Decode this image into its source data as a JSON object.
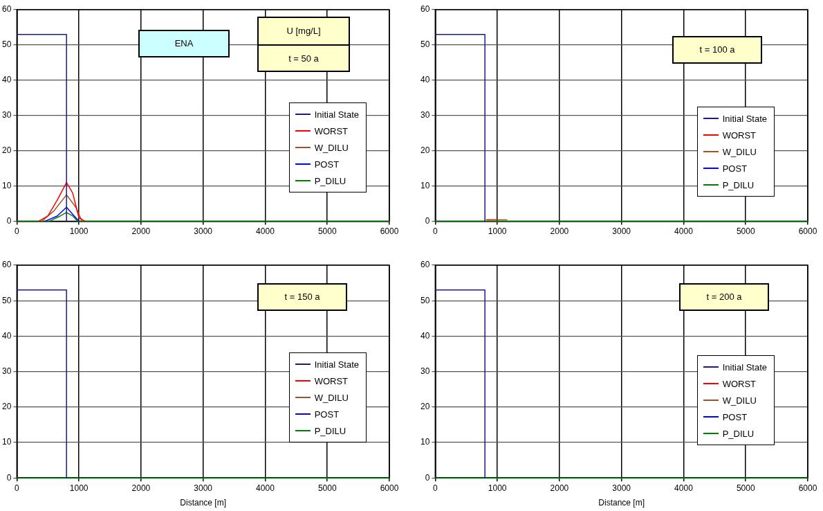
{
  "chart_data": [
    {
      "type": "line",
      "annotations": [
        "ENA",
        "U  [mg/L]",
        "t = 50 a"
      ],
      "xlim": [
        0,
        6000
      ],
      "xticks": [
        0,
        1000,
        2000,
        3000,
        4000,
        5000,
        6000
      ],
      "ylim": [
        0,
        60
      ],
      "yticks": [
        0,
        10,
        20,
        30,
        40,
        50,
        60
      ],
      "grid": true,
      "legend": "right",
      "marker": "none",
      "line_style": "solid",
      "series": [
        {
          "name": "Initial State",
          "color": "#1a1a8c",
          "x": [
            0,
            800,
            800
          ],
          "values": [
            53,
            53,
            0
          ]
        },
        {
          "name": "WORST",
          "color": "#ff0000",
          "x": [
            350,
            500,
            650,
            800,
            900,
            1000,
            1100
          ],
          "values": [
            0,
            1.5,
            6,
            11,
            8,
            1,
            0
          ]
        },
        {
          "name": "W_DILU",
          "color": "#a0522d",
          "x": [
            400,
            600,
            800,
            950,
            1050
          ],
          "values": [
            0,
            3,
            7.5,
            4,
            0
          ]
        },
        {
          "name": "POST",
          "color": "#0000ff",
          "x": [
            450,
            650,
            800,
            900,
            1000
          ],
          "values": [
            0,
            1.5,
            4,
            2,
            0
          ]
        },
        {
          "name": "P_DILU",
          "color": "#008000",
          "x": [
            0,
            520,
            700,
            800,
            900,
            980,
            6000
          ],
          "values": [
            0,
            0,
            1.5,
            2.5,
            1.5,
            0,
            0
          ]
        }
      ]
    },
    {
      "type": "line",
      "annotations": [
        "t = 100 a"
      ],
      "xlim": [
        0,
        6000
      ],
      "xticks": [
        0,
        1000,
        2000,
        3000,
        4000,
        5000,
        6000
      ],
      "ylim": [
        0,
        60
      ],
      "yticks": [
        0,
        10,
        20,
        30,
        40,
        50,
        60
      ],
      "grid": true,
      "legend": "right",
      "marker": "none",
      "line_style": "solid",
      "series": [
        {
          "name": "Initial State",
          "color": "#1a1a8c",
          "x": [
            0,
            800,
            800
          ],
          "values": [
            53,
            53,
            0
          ]
        },
        {
          "name": "WORST",
          "color": "#ff0000",
          "x": [
            820,
            1000
          ],
          "values": [
            0.4,
            0.4
          ]
        },
        {
          "name": "W_DILU",
          "color": "#a0522d",
          "x": [
            1000,
            1160
          ],
          "values": [
            0.4,
            0.4
          ]
        },
        {
          "name": "POST",
          "color": "#0000ff"
        },
        {
          "name": "P_DILU",
          "color": "#008000",
          "x": [
            0,
            6000
          ],
          "values": [
            0,
            0
          ]
        }
      ]
    },
    {
      "type": "line",
      "xlabel": "Distance [m]",
      "annotations": [
        "t = 150 a"
      ],
      "xlim": [
        0,
        6000
      ],
      "xticks": [
        0,
        1000,
        2000,
        3000,
        4000,
        5000,
        6000
      ],
      "ylim": [
        0,
        60
      ],
      "yticks": [
        0,
        10,
        20,
        30,
        40,
        50,
        60
      ],
      "grid": true,
      "legend": "right",
      "marker": "none",
      "line_style": "solid",
      "series": [
        {
          "name": "Initial State",
          "color": "#1a1a8c",
          "x": [
            0,
            800,
            800
          ],
          "values": [
            53,
            53,
            0
          ]
        },
        {
          "name": "WORST",
          "color": "#ff0000"
        },
        {
          "name": "W_DILU",
          "color": "#a0522d"
        },
        {
          "name": "POST",
          "color": "#0000ff"
        },
        {
          "name": "P_DILU",
          "color": "#008000",
          "x": [
            0,
            6000
          ],
          "values": [
            0,
            0
          ]
        }
      ]
    },
    {
      "type": "line",
      "xlabel": "Distance [m]",
      "annotations": [
        "t = 200 a"
      ],
      "xlim": [
        0,
        6000
      ],
      "xticks": [
        0,
        1000,
        2000,
        3000,
        4000,
        5000,
        6000
      ],
      "ylim": [
        0,
        60
      ],
      "yticks": [
        0,
        10,
        20,
        30,
        40,
        50,
        60
      ],
      "grid": true,
      "legend": "right",
      "marker": "none",
      "line_style": "solid",
      "series": [
        {
          "name": "Initial State",
          "color": "#1a1a8c",
          "x": [
            0,
            800,
            800
          ],
          "values": [
            53,
            53,
            0
          ]
        },
        {
          "name": "WORST",
          "color": "#ff0000"
        },
        {
          "name": "W_DILU",
          "color": "#a0522d"
        },
        {
          "name": "POST",
          "color": "#0000ff"
        },
        {
          "name": "P_DILU",
          "color": "#008000",
          "x": [
            0,
            6000
          ],
          "values": [
            0,
            0
          ]
        }
      ]
    }
  ]
}
